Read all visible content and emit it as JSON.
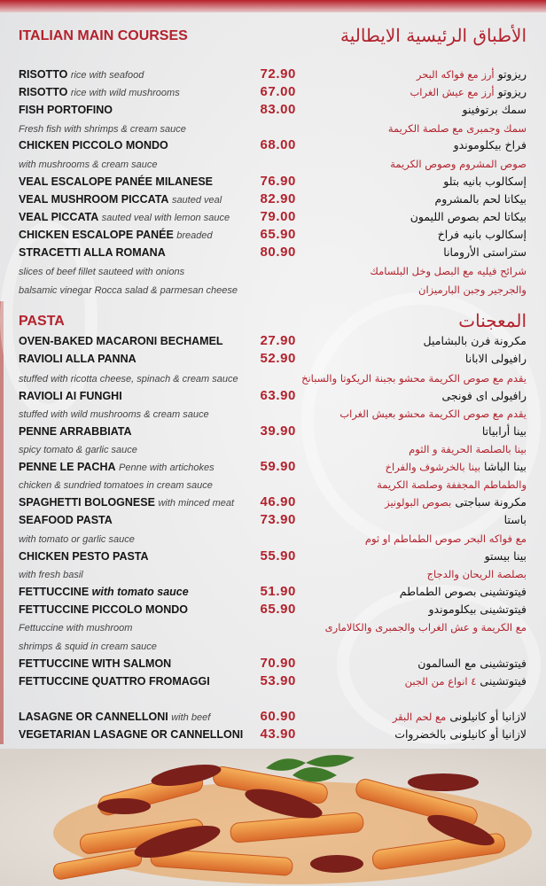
{
  "sections": [
    {
      "title": "ITALIAN MAIN COURSES",
      "title_ar": "الأطباق الرئيسية الايطالية"
    },
    {
      "title": "PASTA",
      "title_ar": "المعجنات"
    }
  ],
  "colors": {
    "accent": "#b3222c",
    "text": "#151515"
  },
  "main_courses": [
    {
      "name": "RISOTTO",
      "desc": "rice with seafood",
      "price": "72.90",
      "ar_name": "ريزوتو",
      "ar_desc": "أرز مع فواكه البحر"
    },
    {
      "name": "RISOTTO",
      "desc": "rice with wild mushrooms",
      "price": "67.00",
      "ar_name": "ريزوتو",
      "ar_desc": "أرز مع عيش الغراب"
    },
    {
      "name": "FISH PORTOFINO",
      "price": "83.00",
      "ar_name": "سمك برتوفينو"
    },
    {
      "desc": "Fresh fish with shrimps & cream sauce",
      "ar_desc": "سمك وجمبرى مع صلصة الكريمة"
    },
    {
      "name": "CHICKEN PICCOLO MONDO",
      "price": "68.00",
      "ar_name": "فراخ بيكلوموندو"
    },
    {
      "desc": "with mushrooms & cream sauce",
      "ar_desc": "صوص المشروم وصوص الكريمة"
    },
    {
      "name": "VEAL ESCALOPE PANÉE MILANESE",
      "price": "76.90",
      "ar_name": "إسكالوب بانيه بتلو"
    },
    {
      "name": "VEAL MUSHROOM PICCATA",
      "desc": "sauted veal",
      "price": "82.90",
      "ar_name": "بيكاتا لحم بالمشروم"
    },
    {
      "name": "VEAL PICCATA",
      "desc": "sauted veal with lemon sauce",
      "price": "79.00",
      "ar_name": "بيكاتا لحم بصوص الليمون"
    },
    {
      "name": "CHICKEN ESCALOPE PANÉE",
      "desc": "breaded",
      "price": "65.90",
      "ar_name": "إسكالوب بانيه فراخ"
    },
    {
      "name": "STRACETTI ALLA ROMANA",
      "price": "80.90",
      "ar_name": "ستراستى الأرومانا"
    },
    {
      "desc": "slices of beef fillet sauteed with onions",
      "ar_desc": "شرائح فيليه مع البصل وخل البلسامك"
    },
    {
      "desc": "balsamic vinegar Rocca salad & parmesan cheese",
      "ar_desc": "والجرجير وجبن البارميزان"
    }
  ],
  "pasta": [
    {
      "name": "OVEN-BAKED MACARONI BECHAMEL",
      "price": "27.90",
      "ar_name": "مكرونة فرن بالبشاميل"
    },
    {
      "name": "RAVIOLI ALLA PANNA",
      "price": "52.90",
      "ar_name": "رافيولى الابانا"
    },
    {
      "desc": "stuffed with ricotta cheese, spinach & cream sauce",
      "ar_desc": "يقدم مع صوص الكريمة محشو بجبنة الريكوتا والسبانخ"
    },
    {
      "name": "RAVIOLI AI FUNGHI",
      "price": "63.90",
      "ar_name": "رافيولى اى فونجى"
    },
    {
      "desc": "stuffed with wild mushrooms & cream sauce",
      "ar_desc": "يقدم مع صوص الكريمة محشو بعيش الغراب"
    },
    {
      "name": "PENNE ARRABBIATA",
      "price": "39.90",
      "ar_name": "بينا أرابياتا"
    },
    {
      "desc": "spicy tomato & garlic sauce",
      "ar_desc": "بينا بالصلصة الحريفة و الثوم"
    },
    {
      "name": "PENNE LE PACHA",
      "desc": "Penne with artichokes",
      "price": "59.90",
      "ar_name": "بينا الباشا",
      "ar_desc": "بينا بالخرشوف والفراخ"
    },
    {
      "desc": "chicken & sundried tomatoes in cream sauce",
      "ar_desc": "والطماطم المجففة وصلصة الكريمة"
    },
    {
      "name": "SPAGHETTI BOLOGNESE",
      "desc": "with minced meat",
      "price": "46.90",
      "ar_name": "مكرونة سباجتى",
      "ar_desc": "بصوص البولونيز"
    },
    {
      "name": "SEAFOOD PASTA",
      "price": "73.90",
      "ar_name": "باستا"
    },
    {
      "desc": "with tomato or garlic sauce",
      "ar_desc": "مع فواكه البحر  صوص الطماطم او ثوم"
    },
    {
      "name": "CHICKEN PESTO PASTA",
      "price": "55.90",
      "ar_name": "بينا بيستو"
    },
    {
      "desc": "with fresh basil",
      "ar_desc": "بصلصة الريحان والدجاج"
    },
    {
      "name": "FETTUCCINE",
      "desc": "with tomato sauce",
      "price": "51.90",
      "ar_name": "فيتوتشينى بصوص الطماطم"
    },
    {
      "name": "FETTUCCINE PICCOLO MONDO",
      "price": "65.90",
      "ar_name": "فيتوتشينى بيكلوموندو"
    },
    {
      "desc": "Fettuccine with mushroom",
      "ar_desc": "مع الكريمة و عش الغراب والجمبرى والكالامارى"
    },
    {
      "desc": "shrimps & squid in cream sauce"
    },
    {
      "name": "FETTUCCINE WITH SALMON",
      "price": "70.90",
      "ar_name": "فيتوتشينى مع السالمون"
    },
    {
      "name": "FETTUCCINE QUATTRO FROMAGGI",
      "price": "53.90",
      "ar_name": "فيتوتشينى",
      "ar_desc": "٤ انواع من الجبن"
    },
    {
      "name": "LASAGNE OR CANNELLONI",
      "desc": "with beef",
      "price": "60.90",
      "ar_name": "لازانيا  أو كانيلونى",
      "ar_desc": "مع لحم البقر"
    },
    {
      "name": "VEGETARIAN LASAGNE OR CANNELLONI",
      "price": "43.90",
      "ar_name": "لازانيا أو كانيلونى بالخضروات"
    }
  ]
}
